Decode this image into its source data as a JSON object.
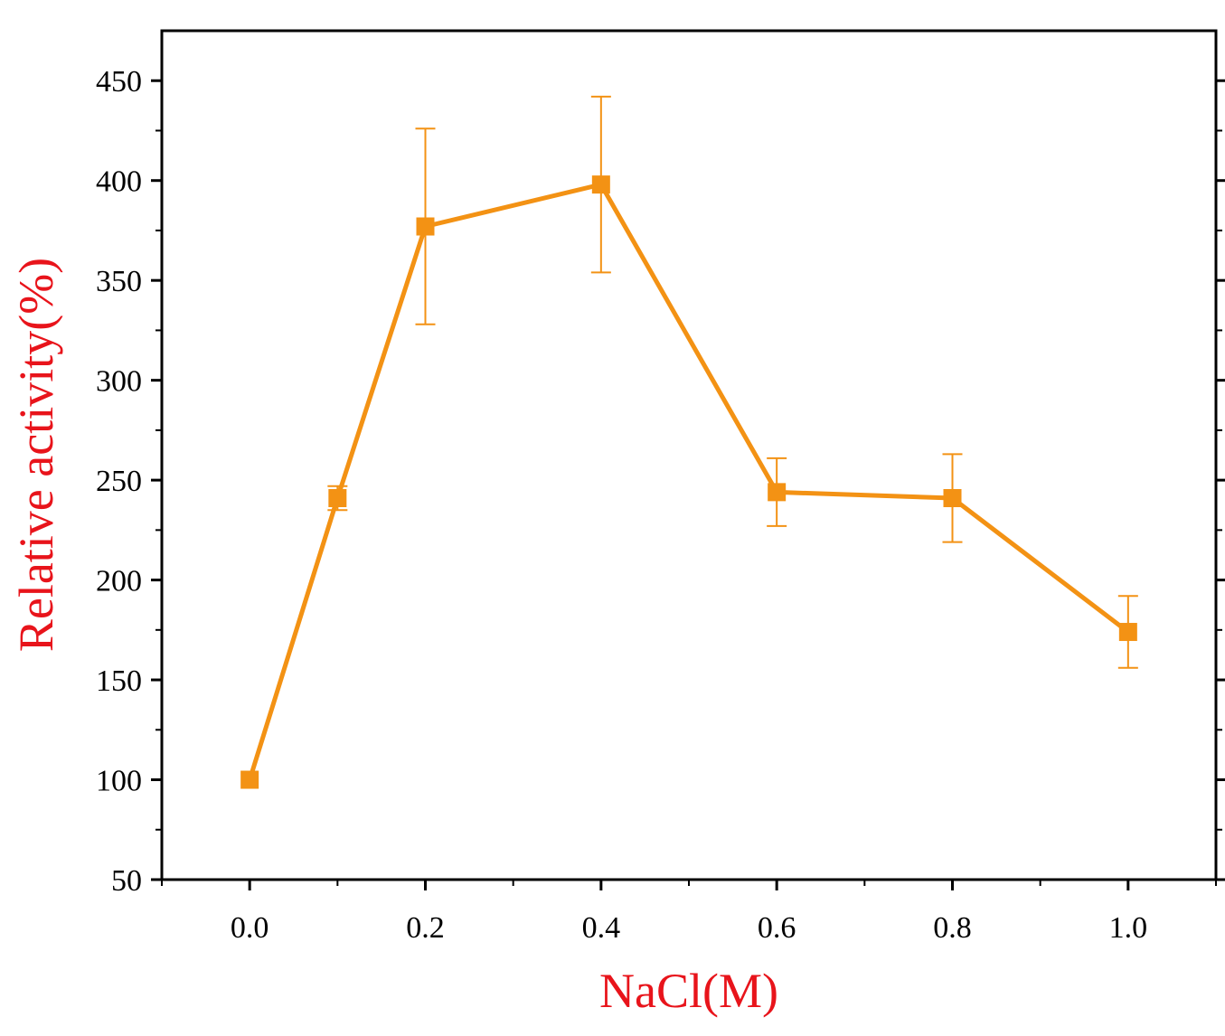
{
  "chart_data": {
    "type": "line",
    "title": "",
    "xlabel": "NaCl(M)",
    "ylabel": "Relative activity(%)",
    "xlim": [
      -0.1,
      1.1
    ],
    "ylim": [
      50,
      475
    ],
    "xticks": [
      "0.0",
      "0.2",
      "0.4",
      "0.6",
      "0.8",
      "1.0"
    ],
    "xtick_values": [
      0.0,
      0.2,
      0.4,
      0.6,
      0.8,
      1.0
    ],
    "yticks": [
      "50",
      "100",
      "150",
      "200",
      "250",
      "300",
      "350",
      "400",
      "450"
    ],
    "ytick_values": [
      50,
      100,
      150,
      200,
      250,
      300,
      350,
      400,
      450
    ],
    "grid": false,
    "legend": "none",
    "series": [
      {
        "color": "#f39214",
        "marker": "square",
        "x": [
          0.0,
          0.1,
          0.2,
          0.4,
          0.6,
          0.8,
          1.0
        ],
        "y": [
          100,
          241,
          377,
          398,
          244,
          241,
          174
        ],
        "error": [
          0,
          6,
          49,
          44,
          17,
          22,
          18
        ]
      }
    ]
  }
}
